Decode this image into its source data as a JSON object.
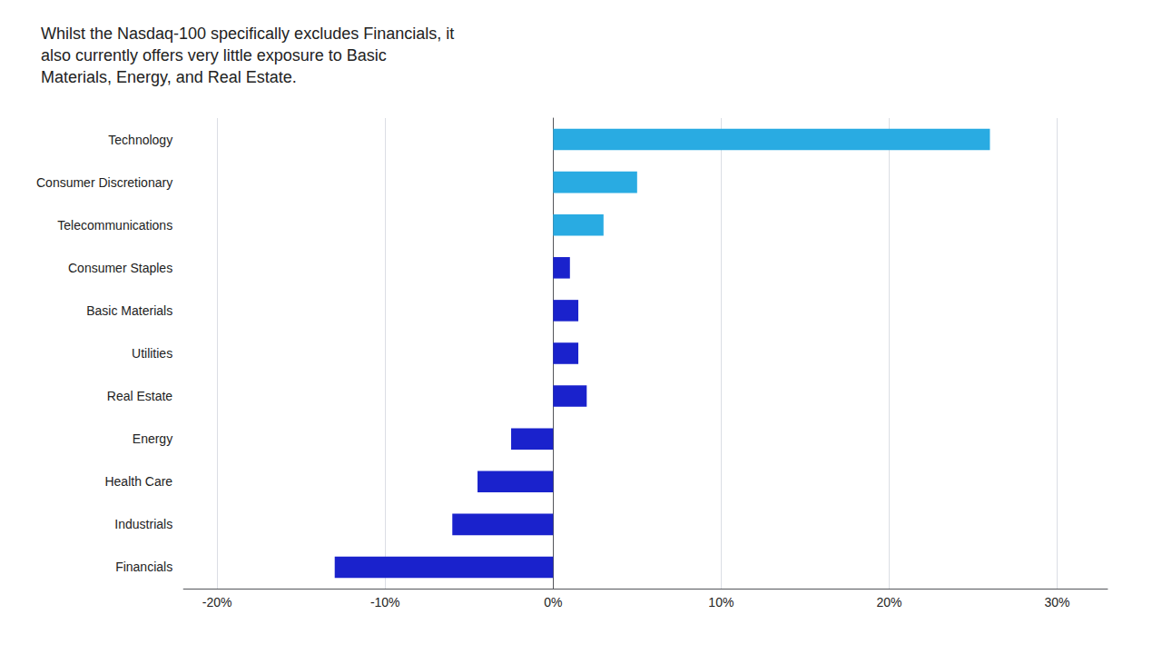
{
  "chart_data": {
    "type": "bar",
    "orientation": "horizontal",
    "title": "Whilst the Nasdaq-100 specifically excludes Financials, it\nalso currently offers very little exposure to Basic\nMaterials, Energy, and Real Estate.",
    "categories": [
      "Technology",
      "Consumer Discretionary",
      "Telecommunications",
      "Consumer Staples",
      "Basic Materials",
      "Utilities",
      "Real Estate",
      "Energy",
      "Health Care",
      "Industrials",
      "Financials"
    ],
    "values": [
      26.0,
      5.0,
      3.0,
      1.0,
      1.5,
      1.5,
      2.0,
      -2.5,
      -4.5,
      -6.0,
      -13.0
    ],
    "colors": [
      "#29ABE2",
      "#29ABE2",
      "#29ABE2",
      "#1A22CC",
      "#1A22CC",
      "#1A22CC",
      "#1A22CC",
      "#1A22CC",
      "#1A22CC",
      "#1A22CC",
      "#1A22CC"
    ],
    "xlim": [
      -22,
      33
    ],
    "xticks": [
      {
        "value": -20,
        "label": "-20%"
      },
      {
        "value": -10,
        "label": "-10%"
      },
      {
        "value": 0,
        "label": "0%"
      },
      {
        "value": 10,
        "label": "10%"
      },
      {
        "value": 20,
        "label": "20%"
      },
      {
        "value": 30,
        "label": "30%"
      }
    ],
    "grid": true
  }
}
